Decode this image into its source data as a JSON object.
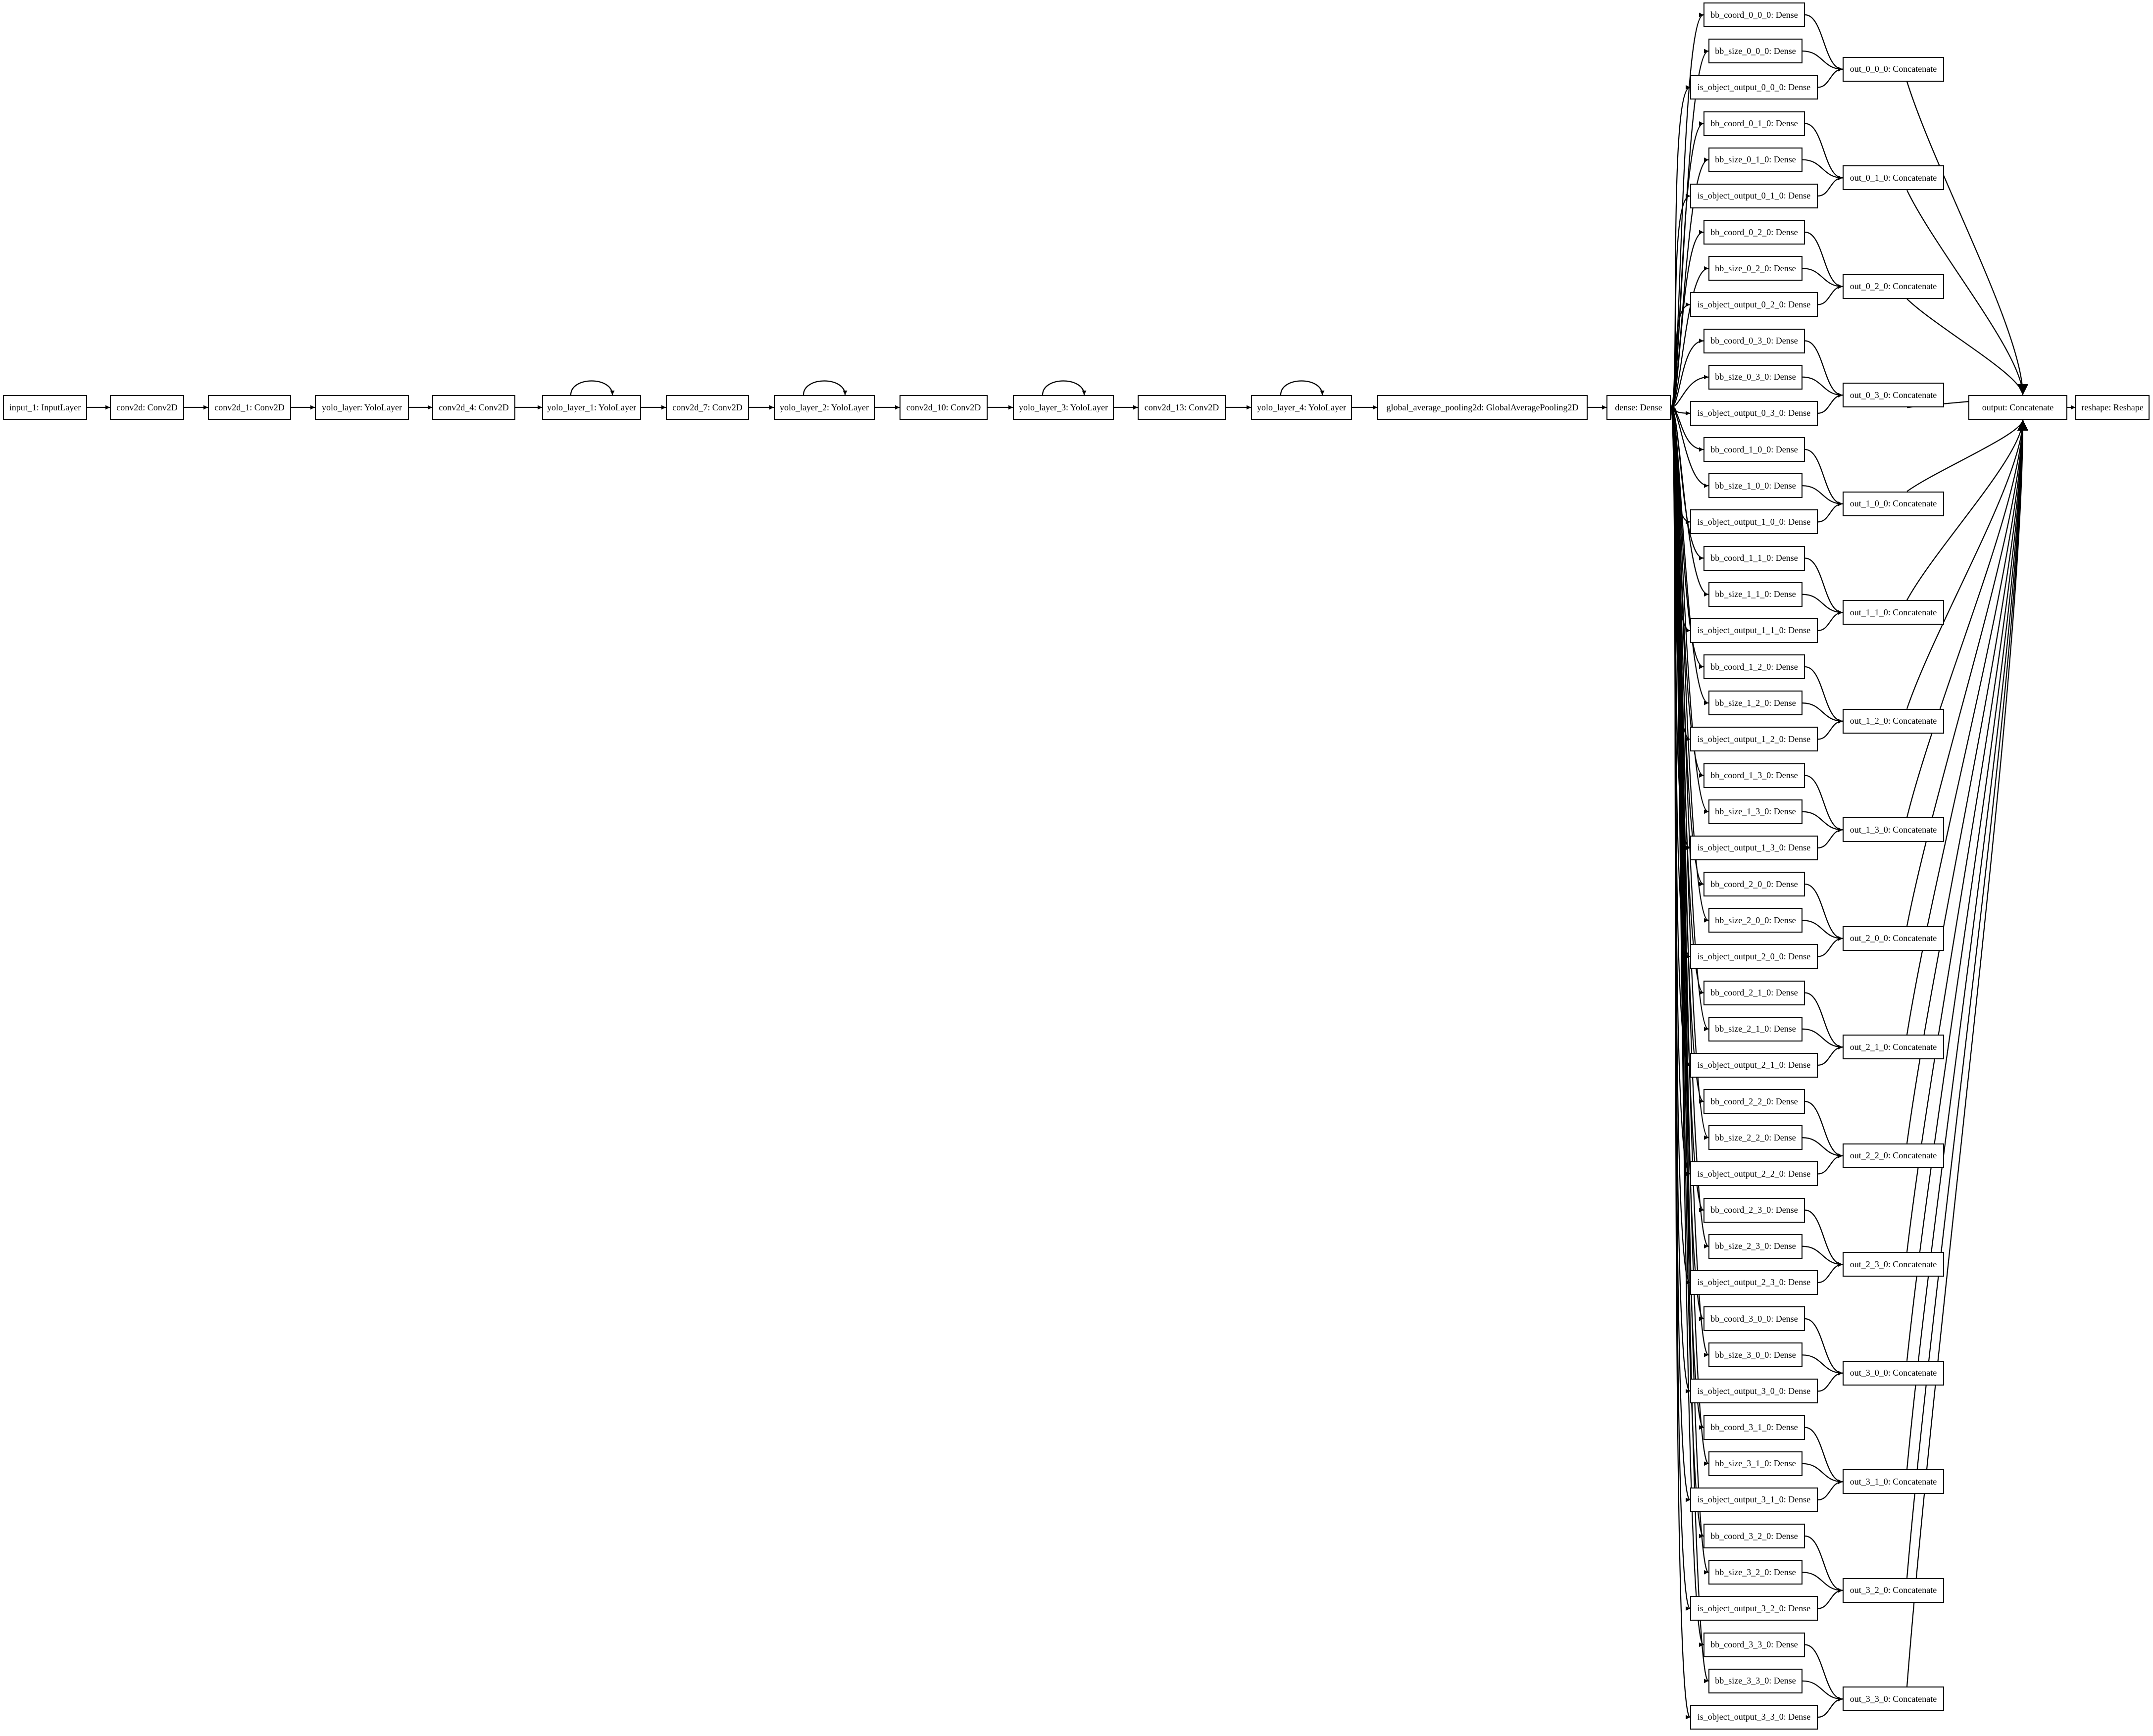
{
  "diagram": {
    "type": "keras-model-graph",
    "backbone": [
      {
        "id": "input_1",
        "label": "input_1: InputLayer"
      },
      {
        "id": "conv2d",
        "label": "conv2d: Conv2D"
      },
      {
        "id": "conv2d_1",
        "label": "conv2d_1: Conv2D"
      },
      {
        "id": "yolo_layer",
        "label": "yolo_layer: YoloLayer"
      },
      {
        "id": "conv2d_4",
        "label": "conv2d_4: Conv2D"
      },
      {
        "id": "yolo_layer_1",
        "label": "yolo_layer_1: YoloLayer",
        "self_loop": true
      },
      {
        "id": "conv2d_7",
        "label": "conv2d_7: Conv2D"
      },
      {
        "id": "yolo_layer_2",
        "label": "yolo_layer_2: YoloLayer",
        "self_loop": true
      },
      {
        "id": "conv2d_10",
        "label": "conv2d_10: Conv2D"
      },
      {
        "id": "yolo_layer_3",
        "label": "yolo_layer_3: YoloLayer",
        "self_loop": true
      },
      {
        "id": "conv2d_13",
        "label": "conv2d_13: Conv2D"
      },
      {
        "id": "yolo_layer_4",
        "label": "yolo_layer_4: YoloLayer",
        "self_loop": true
      },
      {
        "id": "gap",
        "label": "global_average_pooling2d: GlobalAveragePooling2D"
      },
      {
        "id": "dense",
        "label": "dense: Dense"
      }
    ],
    "grid_cells": [
      {
        "cell": "0_0_0",
        "coord": "bb_coord_0_0_0: Dense",
        "size": "bb_size_0_0_0: Dense",
        "obj": "is_object_output_0_0_0: Dense",
        "out": "out_0_0_0: Concatenate"
      },
      {
        "cell": "0_1_0",
        "coord": "bb_coord_0_1_0: Dense",
        "size": "bb_size_0_1_0: Dense",
        "obj": "is_object_output_0_1_0: Dense",
        "out": "out_0_1_0: Concatenate"
      },
      {
        "cell": "0_2_0",
        "coord": "bb_coord_0_2_0: Dense",
        "size": "bb_size_0_2_0: Dense",
        "obj": "is_object_output_0_2_0: Dense",
        "out": "out_0_2_0: Concatenate"
      },
      {
        "cell": "0_3_0",
        "coord": "bb_coord_0_3_0: Dense",
        "size": "bb_size_0_3_0: Dense",
        "obj": "is_object_output_0_3_0: Dense",
        "out": "out_0_3_0: Concatenate"
      },
      {
        "cell": "1_0_0",
        "coord": "bb_coord_1_0_0: Dense",
        "size": "bb_size_1_0_0: Dense",
        "obj": "is_object_output_1_0_0: Dense",
        "out": "out_1_0_0: Concatenate"
      },
      {
        "cell": "1_1_0",
        "coord": "bb_coord_1_1_0: Dense",
        "size": "bb_size_1_1_0: Dense",
        "obj": "is_object_output_1_1_0: Dense",
        "out": "out_1_1_0: Concatenate"
      },
      {
        "cell": "1_2_0",
        "coord": "bb_coord_1_2_0: Dense",
        "size": "bb_size_1_2_0: Dense",
        "obj": "is_object_output_1_2_0: Dense",
        "out": "out_1_2_0: Concatenate"
      },
      {
        "cell": "1_3_0",
        "coord": "bb_coord_1_3_0: Dense",
        "size": "bb_size_1_3_0: Dense",
        "obj": "is_object_output_1_3_0: Dense",
        "out": "out_1_3_0: Concatenate"
      },
      {
        "cell": "2_0_0",
        "coord": "bb_coord_2_0_0: Dense",
        "size": "bb_size_2_0_0: Dense",
        "obj": "is_object_output_2_0_0: Dense",
        "out": "out_2_0_0: Concatenate"
      },
      {
        "cell": "2_1_0",
        "coord": "bb_coord_2_1_0: Dense",
        "size": "bb_size_2_1_0: Dense",
        "obj": "is_object_output_2_1_0: Dense",
        "out": "out_2_1_0: Concatenate"
      },
      {
        "cell": "2_2_0",
        "coord": "bb_coord_2_2_0: Dense",
        "size": "bb_size_2_2_0: Dense",
        "obj": "is_object_output_2_2_0: Dense",
        "out": "out_2_2_0: Concatenate"
      },
      {
        "cell": "2_3_0",
        "coord": "bb_coord_2_3_0: Dense",
        "size": "bb_size_2_3_0: Dense",
        "obj": "is_object_output_2_3_0: Dense",
        "out": "out_2_3_0: Concatenate"
      },
      {
        "cell": "3_0_0",
        "coord": "bb_coord_3_0_0: Dense",
        "size": "bb_size_3_0_0: Dense",
        "obj": "is_object_output_3_0_0: Dense",
        "out": "out_3_0_0: Concatenate"
      },
      {
        "cell": "3_1_0",
        "coord": "bb_coord_3_1_0: Dense",
        "size": "bb_size_3_1_0: Dense",
        "obj": "is_object_output_3_1_0: Dense",
        "out": "out_3_1_0: Concatenate"
      },
      {
        "cell": "3_2_0",
        "coord": "bb_coord_3_2_0: Dense",
        "size": "bb_size_3_2_0: Dense",
        "obj": "is_object_output_3_2_0: Dense",
        "out": "out_3_2_0: Concatenate"
      },
      {
        "cell": "3_3_0",
        "coord": "bb_coord_3_3_0: Dense",
        "size": "bb_size_3_3_0: Dense",
        "obj": "is_object_output_3_3_0: Dense",
        "out": "out_3_3_0: Concatenate"
      }
    ],
    "output": {
      "id": "output",
      "label": "output: Concatenate"
    },
    "reshape": {
      "id": "reshape",
      "label": "reshape: Reshape"
    },
    "colors": {
      "stroke": "#000000",
      "fill": "#ffffff",
      "background": "#ffffff"
    }
  }
}
